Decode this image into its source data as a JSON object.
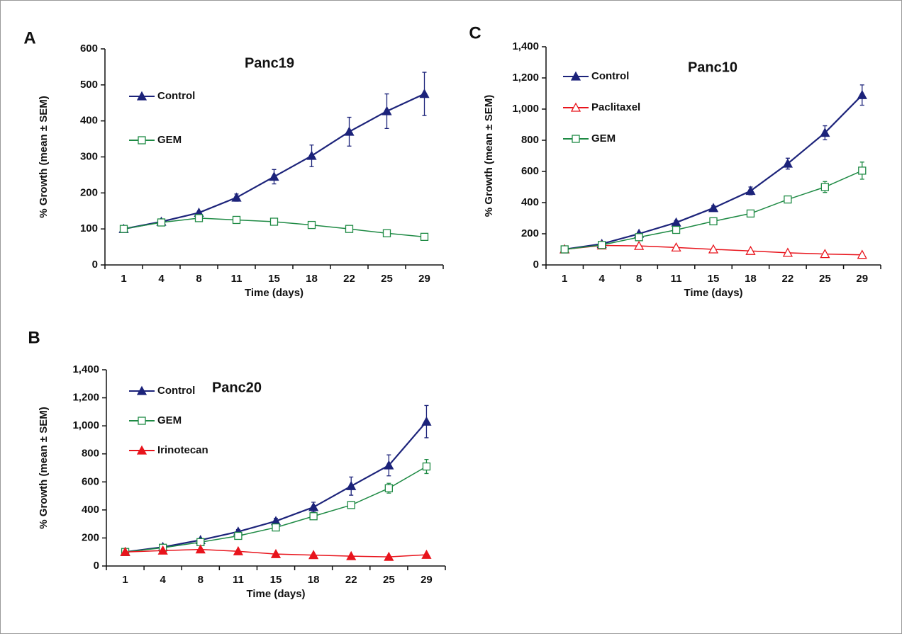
{
  "chart_data": [
    {
      "type": "line",
      "panel": "A",
      "title": "Panc19",
      "xlabel": "Time (days)",
      "ylabel": "% Growth (mean ± SEM)",
      "categories": [
        "1",
        "4",
        "8",
        "11",
        "15",
        "18",
        "22",
        "25",
        "29"
      ],
      "ylim": [
        0,
        600
      ],
      "yticks": [
        0,
        100,
        200,
        300,
        400,
        500,
        600
      ],
      "series": [
        {
          "name": "Control",
          "color": "#1c237a",
          "marker": "triangle",
          "filled": true,
          "values": [
            100,
            120,
            145,
            187,
            245,
            303,
            370,
            427,
            475
          ],
          "errors": [
            0,
            0,
            0,
            10,
            20,
            30,
            40,
            48,
            60
          ]
        },
        {
          "name": "GEM",
          "color": "#1e8a44",
          "marker": "square",
          "filled": false,
          "values": [
            100,
            118,
            130,
            125,
            120,
            111,
            100,
            88,
            78
          ],
          "errors": [
            0,
            0,
            0,
            0,
            0,
            0,
            0,
            0,
            0
          ]
        }
      ]
    },
    {
      "type": "line",
      "panel": "B",
      "title": "Panc20",
      "xlabel": "Time (days)",
      "ylabel": "% Growth (mean ± SEM)",
      "categories": [
        "1",
        "4",
        "8",
        "11",
        "15",
        "18",
        "22",
        "25",
        "29"
      ],
      "ylim": [
        0,
        1400
      ],
      "yticks": [
        0,
        200,
        400,
        600,
        800,
        {
          "value": 1000,
          "label": "1,000"
        },
        {
          "value": 1200,
          "label": "1,200"
        },
        {
          "value": 1400,
          "label": "1,400"
        }
      ],
      "series": [
        {
          "name": "Control",
          "color": "#1c237a",
          "marker": "triangle",
          "filled": true,
          "values": [
            100,
            135,
            185,
            245,
            320,
            420,
            570,
            718,
            1030
          ],
          "errors": [
            0,
            5,
            8,
            15,
            20,
            35,
            65,
            75,
            115
          ]
        },
        {
          "name": "GEM",
          "color": "#1e8a44",
          "marker": "square",
          "filled": false,
          "values": [
            100,
            130,
            170,
            215,
            275,
            355,
            435,
            555,
            710
          ],
          "errors": [
            0,
            5,
            5,
            8,
            10,
            15,
            25,
            35,
            50
          ]
        },
        {
          "name": "Irinotecan",
          "color": "#e8141c",
          "marker": "triangle",
          "filled": true,
          "values": [
            100,
            110,
            118,
            105,
            85,
            78,
            70,
            65,
            80
          ],
          "errors": [
            3,
            3,
            3,
            3,
            3,
            3,
            3,
            3,
            3
          ]
        }
      ]
    },
    {
      "type": "line",
      "panel": "C",
      "title": "Panc10",
      "xlabel": "Time (days)",
      "ylabel": "% Growth (mean ± SEM)",
      "categories": [
        "1",
        "4",
        "8",
        "11",
        "15",
        "18",
        "22",
        "25",
        "29"
      ],
      "ylim": [
        0,
        1400
      ],
      "yticks": [
        0,
        200,
        400,
        600,
        800,
        {
          "value": 1000,
          "label": "1,000"
        },
        {
          "value": 1200,
          "label": "1,200"
        },
        {
          "value": 1400,
          "label": "1,400"
        }
      ],
      "series": [
        {
          "name": "Control",
          "color": "#1c237a",
          "marker": "triangle",
          "filled": true,
          "values": [
            100,
            135,
            200,
            272,
            365,
            475,
            650,
            848,
            1090
          ],
          "errors": [
            0,
            5,
            8,
            12,
            15,
            25,
            35,
            45,
            65
          ]
        },
        {
          "name": "Paclitaxel",
          "color": "#e8141c",
          "marker": "triangle",
          "filled": false,
          "values": [
            100,
            125,
            122,
            112,
            100,
            90,
            78,
            70,
            65
          ],
          "errors": [
            0,
            0,
            0,
            0,
            0,
            0,
            0,
            0,
            0
          ]
        },
        {
          "name": "GEM",
          "color": "#1e8a44",
          "marker": "square",
          "filled": false,
          "values": [
            100,
            128,
            178,
            225,
            280,
            330,
            420,
            500,
            605
          ],
          "errors": [
            0,
            5,
            5,
            8,
            8,
            10,
            20,
            35,
            55
          ]
        }
      ]
    }
  ]
}
